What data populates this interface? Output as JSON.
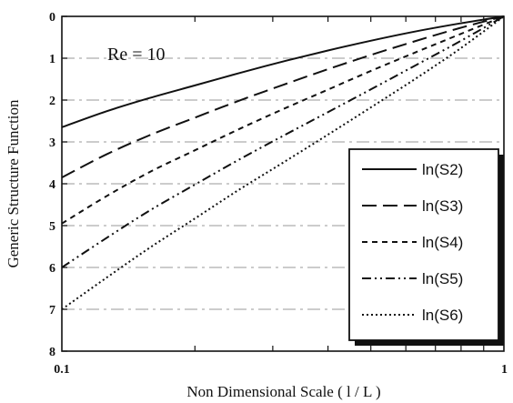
{
  "chart_data": {
    "type": "line",
    "xlabel": "Non Dimensional Scale ( l / L )",
    "ylabel": "Generic Structure Function",
    "x_scale": "log",
    "xlim": [
      0.1,
      1
    ],
    "x_ticks": [
      "0.1",
      "1"
    ],
    "ylim": [
      0,
      8
    ],
    "y_inverted": true,
    "y_ticks": [
      "0",
      "1",
      "2",
      "3",
      "4",
      "5",
      "6",
      "7",
      "8"
    ],
    "grid": true,
    "legend_position": "bottom-right",
    "annotation": "Re = 10",
    "x": [
      0.1,
      0.126,
      0.158,
      0.2,
      0.251,
      0.316,
      0.398,
      0.501,
      0.631,
      0.794,
      1.0
    ],
    "series": [
      {
        "name": "ln(S2)",
        "style": "solid",
        "values": [
          2.65,
          2.27,
          1.95,
          1.65,
          1.36,
          1.08,
          0.82,
          0.58,
          0.36,
          0.17,
          0.0
        ]
      },
      {
        "name": "ln(S3)",
        "style": "long-dash",
        "values": [
          3.85,
          3.3,
          2.84,
          2.42,
          2.02,
          1.64,
          1.27,
          0.92,
          0.59,
          0.28,
          0.0
        ]
      },
      {
        "name": "ln(S4)",
        "style": "short-dash",
        "values": [
          4.95,
          4.3,
          3.72,
          3.2,
          2.7,
          2.22,
          1.76,
          1.3,
          0.86,
          0.43,
          0.0
        ]
      },
      {
        "name": "ln(S5)",
        "style": "dash-dot-dot",
        "values": [
          6.0,
          5.3,
          4.64,
          4.02,
          3.43,
          2.86,
          2.3,
          1.74,
          1.17,
          0.6,
          0.0
        ]
      },
      {
        "name": "ln(S6)",
        "style": "dotted",
        "values": [
          7.0,
          6.25,
          5.53,
          4.83,
          4.15,
          3.5,
          2.84,
          2.17,
          1.49,
          0.78,
          0.0
        ]
      }
    ]
  }
}
